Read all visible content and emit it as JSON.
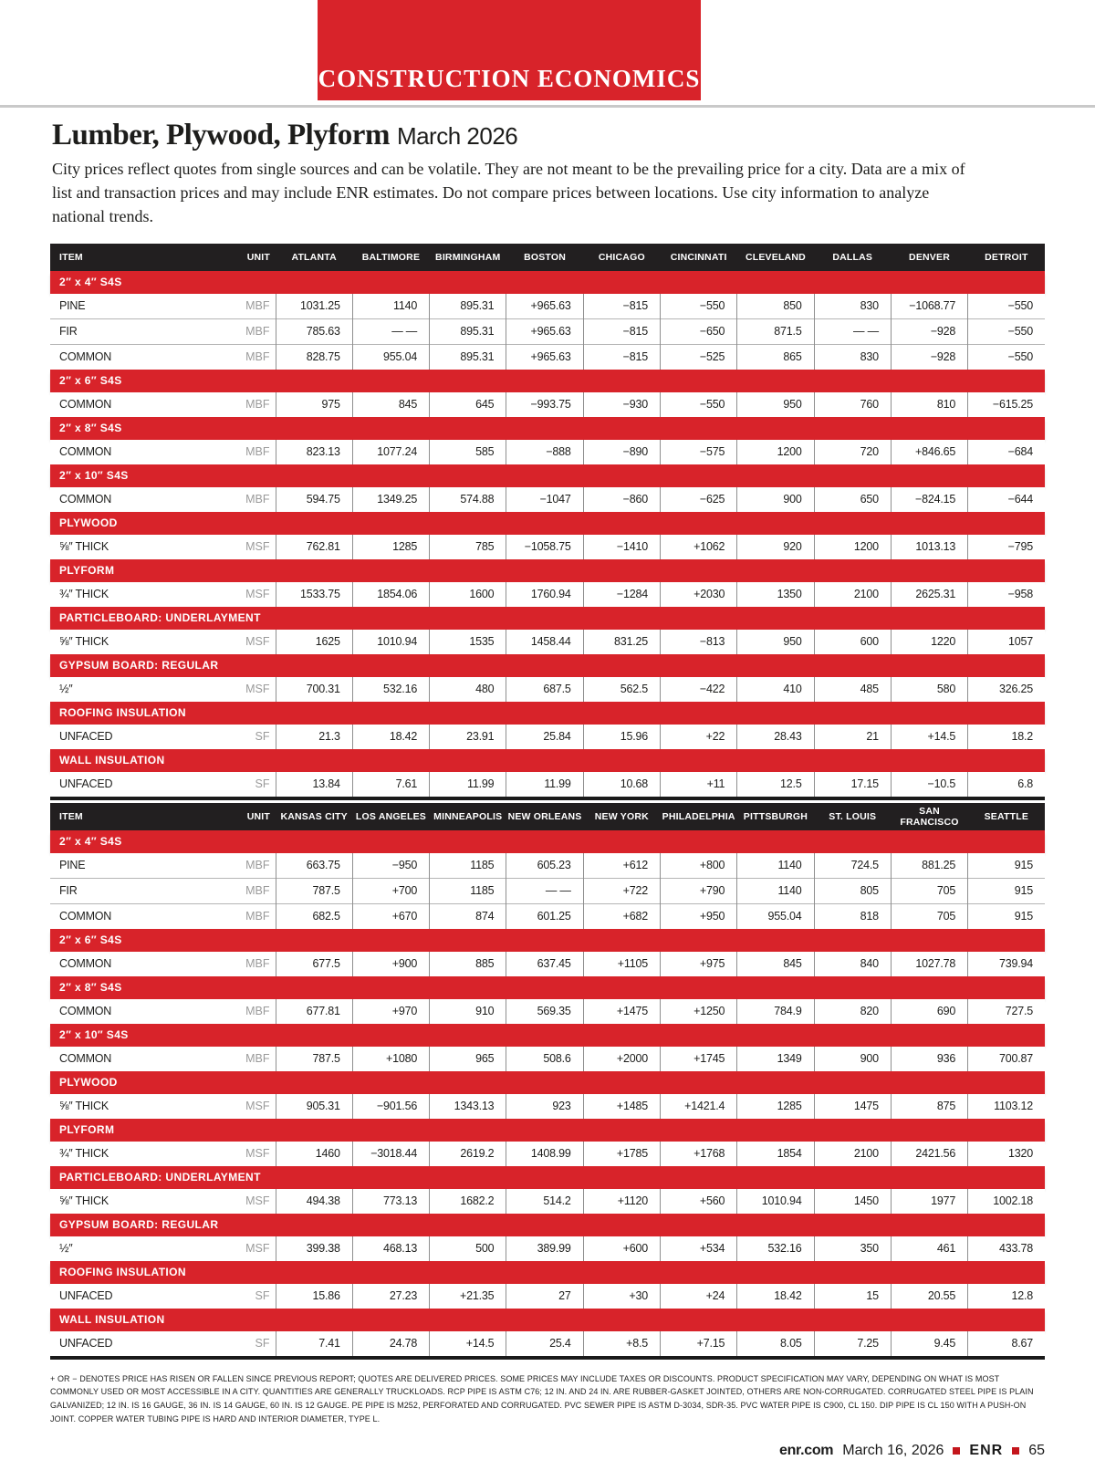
{
  "banner": {
    "label": "CONSTRUCTION ECONOMICS"
  },
  "title": {
    "main": "Lumber, Plywood, Plyform",
    "date": "March 2026"
  },
  "intro": "City prices reflect quotes from single sources and can be volatile. They are not meant to be the prevailing price for a city. Data are a mix of list and transaction prices and may include ENR estimates. Do not compare prices between locations. Use city information to analyze national trends.",
  "tables": [
    {
      "columns": [
        "ITEM",
        "UNIT",
        "ATLANTA",
        "BALTIMORE",
        "BIRMINGHAM",
        "BOSTON",
        "CHICAGO",
        "CINCINNATI",
        "CLEVELAND",
        "DALLAS",
        "DENVER",
        "DETROIT"
      ],
      "sections": [
        {
          "header": "2″ x 4″ S4S",
          "rows": [
            {
              "item": "PINE",
              "unit": "MBF",
              "values": [
                "1031.25",
                "1140",
                "895.31",
                "+965.63",
                "−815",
                "−550",
                "850",
                "830",
                "−1068.77",
                "−550"
              ]
            },
            {
              "item": "FIR",
              "unit": "MBF",
              "values": [
                "785.63",
                "— —",
                "895.31",
                "+965.63",
                "−815",
                "−650",
                "871.5",
                "— —",
                "−928",
                "−550"
              ]
            },
            {
              "item": "COMMON",
              "unit": "MBF",
              "values": [
                "828.75",
                "955.04",
                "895.31",
                "+965.63",
                "−815",
                "−525",
                "865",
                "830",
                "−928",
                "−550"
              ]
            }
          ]
        },
        {
          "header": "2″ x 6″ S4S",
          "rows": [
            {
              "item": "COMMON",
              "unit": "MBF",
              "values": [
                "975",
                "845",
                "645",
                "−993.75",
                "−930",
                "−550",
                "950",
                "760",
                "810",
                "−615.25"
              ]
            }
          ]
        },
        {
          "header": "2″ x 8″ S4S",
          "rows": [
            {
              "item": "COMMON",
              "unit": "MBF",
              "values": [
                "823.13",
                "1077.24",
                "585",
                "−888",
                "−890",
                "−575",
                "1200",
                "720",
                "+846.65",
                "−684"
              ]
            }
          ]
        },
        {
          "header": "2″ x 10″ S4S",
          "rows": [
            {
              "item": "COMMON",
              "unit": "MBF",
              "values": [
                "594.75",
                "1349.25",
                "574.88",
                "−1047",
                "−860",
                "−625",
                "900",
                "650",
                "−824.15",
                "−644"
              ]
            }
          ]
        },
        {
          "header": "PLYWOOD",
          "rows": [
            {
              "item": "⅝″ THICK",
              "unit": "MSF",
              "values": [
                "762.81",
                "1285",
                "785",
                "−1058.75",
                "−1410",
                "+1062",
                "920",
                "1200",
                "1013.13",
                "−795"
              ]
            }
          ]
        },
        {
          "header": "PLYFORM",
          "rows": [
            {
              "item": "¾″ THICK",
              "unit": "MSF",
              "values": [
                "1533.75",
                "1854.06",
                "1600",
                "1760.94",
                "−1284",
                "+2030",
                "1350",
                "2100",
                "2625.31",
                "−958"
              ]
            }
          ]
        },
        {
          "header": "PARTICLEBOARD: UNDERLAYMENT",
          "rows": [
            {
              "item": "⅝″ THICK",
              "unit": "MSF",
              "values": [
                "1625",
                "1010.94",
                "1535",
                "1458.44",
                "831.25",
                "−813",
                "950",
                "600",
                "1220",
                "1057"
              ]
            }
          ]
        },
        {
          "header": "GYPSUM BOARD: REGULAR",
          "rows": [
            {
              "item": "½″",
              "unit": "MSF",
              "values": [
                "700.31",
                "532.16",
                "480",
                "687.5",
                "562.5",
                "−422",
                "410",
                "485",
                "580",
                "326.25"
              ]
            }
          ]
        },
        {
          "header": "ROOFING INSULATION",
          "rows": [
            {
              "item": "UNFACED",
              "unit": "SF",
              "values": [
                "21.3",
                "18.42",
                "23.91",
                "25.84",
                "15.96",
                "+22",
                "28.43",
                "21",
                "+14.5",
                "18.2"
              ]
            }
          ]
        },
        {
          "header": "WALL INSULATION",
          "rows": [
            {
              "item": "UNFACED",
              "unit": "SF",
              "values": [
                "13.84",
                "7.61",
                "11.99",
                "11.99",
                "10.68",
                "+11",
                "12.5",
                "17.15",
                "−10.5",
                "6.8"
              ]
            }
          ]
        }
      ]
    },
    {
      "columns": [
        "ITEM",
        "UNIT",
        "KANSAS CITY",
        "LOS ANGELES",
        "MINNEAPOLIS",
        "NEW ORLEANS",
        "NEW YORK",
        "PHILADELPHIA",
        "PITTSBURGH",
        "ST. LOUIS",
        "SAN FRANCISCO",
        "SEATTLE"
      ],
      "sections": [
        {
          "header": "2″ x 4″ S4S",
          "rows": [
            {
              "item": "PINE",
              "unit": "MBF",
              "values": [
                "663.75",
                "−950",
                "1185",
                "605.23",
                "+612",
                "+800",
                "1140",
                "724.5",
                "881.25",
                "915"
              ]
            },
            {
              "item": "FIR",
              "unit": "MBF",
              "values": [
                "787.5",
                "+700",
                "1185",
                "— —",
                "+722",
                "+790",
                "1140",
                "805",
                "705",
                "915"
              ]
            },
            {
              "item": "COMMON",
              "unit": "MBF",
              "values": [
                "682.5",
                "+670",
                "874",
                "601.25",
                "+682",
                "+950",
                "955.04",
                "818",
                "705",
                "915"
              ]
            }
          ]
        },
        {
          "header": "2″ x 6″ S4S",
          "rows": [
            {
              "item": "COMMON",
              "unit": "MBF",
              "values": [
                "677.5",
                "+900",
                "885",
                "637.45",
                "+1105",
                "+975",
                "845",
                "840",
                "1027.78",
                "739.94"
              ]
            }
          ]
        },
        {
          "header": "2″ x 8″ S4S",
          "rows": [
            {
              "item": "COMMON",
              "unit": "MBF",
              "values": [
                "677.81",
                "+970",
                "910",
                "569.35",
                "+1475",
                "+1250",
                "784.9",
                "820",
                "690",
                "727.5"
              ]
            }
          ]
        },
        {
          "header": "2″ x 10″ S4S",
          "rows": [
            {
              "item": "COMMON",
              "unit": "MBF",
              "values": [
                "787.5",
                "+1080",
                "965",
                "508.6",
                "+2000",
                "+1745",
                "1349",
                "900",
                "936",
                "700.87"
              ]
            }
          ]
        },
        {
          "header": "PLYWOOD",
          "rows": [
            {
              "item": "⅝″ THICK",
              "unit": "MSF",
              "values": [
                "905.31",
                "−901.56",
                "1343.13",
                "923",
                "+1485",
                "+1421.4",
                "1285",
                "1475",
                "875",
                "1103.12"
              ]
            }
          ]
        },
        {
          "header": "PLYFORM",
          "rows": [
            {
              "item": "¾″ THICK",
              "unit": "MSF",
              "values": [
                "1460",
                "−3018.44",
                "2619.2",
                "1408.99",
                "+1785",
                "+1768",
                "1854",
                "2100",
                "2421.56",
                "1320"
              ]
            }
          ]
        },
        {
          "header": "PARTICLEBOARD: UNDERLAYMENT",
          "rows": [
            {
              "item": "⅝″ THICK",
              "unit": "MSF",
              "values": [
                "494.38",
                "773.13",
                "1682.2",
                "514.2",
                "+1120",
                "+560",
                "1010.94",
                "1450",
                "1977",
                "1002.18"
              ]
            }
          ]
        },
        {
          "header": "GYPSUM BOARD: REGULAR",
          "rows": [
            {
              "item": "½″",
              "unit": "MSF",
              "values": [
                "399.38",
                "468.13",
                "500",
                "389.99",
                "+600",
                "+534",
                "532.16",
                "350",
                "461",
                "433.78"
              ]
            }
          ]
        },
        {
          "header": "ROOFING INSULATION",
          "rows": [
            {
              "item": "UNFACED",
              "unit": "SF",
              "values": [
                "15.86",
                "27.23",
                "+21.35",
                "27",
                "+30",
                "+24",
                "18.42",
                "15",
                "20.55",
                "12.8"
              ]
            }
          ]
        },
        {
          "header": "WALL INSULATION",
          "rows": [
            {
              "item": "UNFACED",
              "unit": "SF",
              "values": [
                "7.41",
                "24.78",
                "+14.5",
                "25.4",
                "+8.5",
                "+7.15",
                "8.05",
                "7.25",
                "9.45",
                "8.67"
              ]
            }
          ]
        }
      ]
    }
  ],
  "footnote": "+ OR − DENOTES PRICE HAS RISEN OR FALLEN SINCE PREVIOUS REPORT; QUOTES ARE DELIVERED PRICES. SOME PRICES MAY INCLUDE TAXES OR DISCOUNTS. PRODUCT SPECIFICATION MAY VARY, DEPENDING ON WHAT IS MOST COMMONLY USED OR MOST ACCESSIBLE IN A CITY. QUANTITIES ARE GENERALLY TRUCKLOADS. RCP PIPE IS ASTM C76; 12 IN. AND 24 IN. ARE RUBBER-GASKET JOINTED, OTHERS ARE NON-CORRUGATED. CORRUGATED STEEL PIPE IS PLAIN GALVANIZED; 12 IN. IS 16 GAUGE, 36 IN. IS 14 GAUGE, 60 IN. IS 12 GAUGE. PE PIPE IS M252, PERFORATED AND CORRUGATED. PVC SEWER PIPE IS ASTM D-3034, SDR-35. PVC WATER PIPE IS C900, CL 150. DIP PIPE IS CL 150 WITH A PUSH-ON JOINT. COPPER WATER TUBING PIPE IS HARD AND INTERIOR DIAMETER, TYPE L.",
  "page_footer": {
    "site": "enr.com",
    "date": "March 16, 2026",
    "brand": "ENR",
    "page": "65"
  }
}
